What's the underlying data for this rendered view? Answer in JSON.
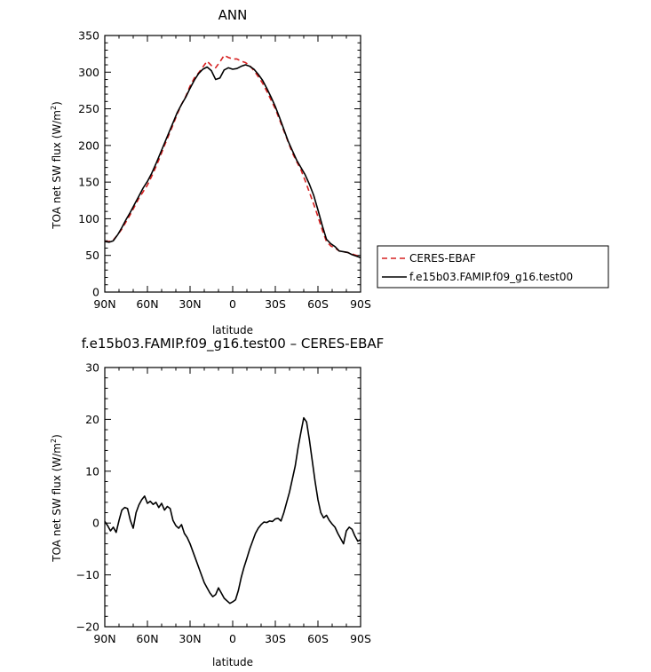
{
  "chart_data": [
    {
      "type": "line",
      "title": "ANN",
      "xlabel": "latitude",
      "ylabel": "TOA net SW flux (W/m²)",
      "ylabel_parts": {
        "text": "TOA net SW flux (W/m",
        "sup": "2",
        "close": ")"
      },
      "xlim": [
        90,
        -90
      ],
      "ylim": [
        0,
        350
      ],
      "x_ticks": [
        90,
        60,
        30,
        0,
        -30,
        -60,
        -90
      ],
      "x_tick_labels": [
        "90N",
        "60N",
        "30N",
        "0",
        "30S",
        "60S",
        "90S"
      ],
      "y_ticks": [
        0,
        50,
        100,
        150,
        200,
        250,
        300,
        350
      ],
      "y_tick_labels": [
        "0",
        "50",
        "100",
        "150",
        "200",
        "250",
        "300",
        "350"
      ],
      "grid": false,
      "legend_position": "right",
      "series": [
        {
          "name": "CERES-EBAF",
          "color": "#d62020",
          "style": "dashed",
          "x": [
            90,
            87,
            84,
            81,
            78,
            75,
            72,
            69,
            66,
            63,
            60,
            57,
            54,
            51,
            48,
            45,
            42,
            39,
            36,
            33,
            30,
            27,
            24,
            21,
            18,
            15,
            12,
            9,
            6,
            3,
            0,
            -3,
            -6,
            -9,
            -12,
            -15,
            -18,
            -21,
            -24,
            -27,
            -30,
            -33,
            -36,
            -39,
            -42,
            -45,
            -48,
            -51,
            -54,
            -57,
            -60,
            -63,
            -66,
            -69,
            -72,
            -75,
            -78,
            -81,
            -84,
            -87,
            -90
          ],
          "y": [
            69,
            69,
            71,
            78,
            86,
            96,
            106,
            117,
            128,
            137,
            146,
            158,
            171,
            185,
            200,
            214,
            228,
            243,
            256,
            267,
            281,
            292,
            299,
            307,
            315,
            309,
            306,
            314,
            323,
            320,
            318,
            318,
            315,
            313,
            309,
            302,
            294,
            285,
            274,
            262,
            250,
            235,
            220,
            205,
            190,
            178,
            167,
            152,
            136,
            120,
            103,
            85,
            69,
            63,
            60,
            56,
            55,
            54,
            52,
            50,
            49
          ]
        },
        {
          "name": "f.e15b03.FAMIP.f09_g16.test00",
          "color": "#000000",
          "style": "solid",
          "x": [
            90,
            87,
            84,
            81,
            78,
            75,
            72,
            69,
            66,
            63,
            60,
            57,
            54,
            51,
            48,
            45,
            42,
            39,
            36,
            33,
            30,
            27,
            24,
            21,
            18,
            15,
            12,
            9,
            6,
            3,
            0,
            -3,
            -6,
            -9,
            -12,
            -15,
            -18,
            -21,
            -24,
            -27,
            -30,
            -33,
            -36,
            -39,
            -42,
            -45,
            -48,
            -51,
            -54,
            -57,
            -60,
            -63,
            -66,
            -69,
            -72,
            -75,
            -78,
            -81,
            -84,
            -87,
            -90
          ],
          "y": [
            69,
            68,
            70,
            78,
            88,
            99,
            109,
            120,
            131,
            142,
            151,
            162,
            175,
            189,
            203,
            217,
            231,
            245,
            256,
            266,
            278,
            289,
            298,
            304,
            307,
            302,
            290,
            292,
            303,
            306,
            304,
            305,
            308,
            310,
            308,
            304,
            297,
            289,
            278,
            266,
            253,
            238,
            222,
            206,
            193,
            180,
            170,
            160,
            147,
            132,
            112,
            91,
            72,
            66,
            62,
            56,
            55,
            54,
            51,
            49,
            47
          ]
        }
      ]
    },
    {
      "type": "line",
      "title": "f.e15b03.FAMIP.f09_g16.test00 – CERES-EBAF",
      "xlabel": "latitude",
      "ylabel": "TOA net SW flux (W/m²)",
      "ylabel_parts": {
        "text": "TOA net SW flux (W/m",
        "sup": "2",
        "close": ")"
      },
      "xlim": [
        90,
        -90
      ],
      "ylim": [
        -20,
        30
      ],
      "x_ticks": [
        90,
        60,
        30,
        0,
        -30,
        -60,
        -90
      ],
      "x_tick_labels": [
        "90N",
        "60N",
        "30N",
        "0",
        "30S",
        "60S",
        "90S"
      ],
      "y_ticks": [
        -20,
        -10,
        0,
        10,
        20,
        30
      ],
      "y_tick_labels": [
        "−20",
        "−10",
        "0",
        "10",
        "20",
        "30"
      ],
      "grid": false,
      "series": [
        {
          "color": "#000000",
          "style": "solid",
          "x": [
            90,
            88,
            86,
            84,
            82,
            80,
            78,
            76,
            74,
            72,
            70,
            68,
            66,
            64,
            62,
            60,
            58,
            56,
            54,
            52,
            50,
            48,
            46,
            44,
            42,
            40,
            38,
            36,
            34,
            32,
            30,
            28,
            26,
            24,
            22,
            20,
            18,
            16,
            14,
            12,
            10,
            8,
            6,
            4,
            2,
            0,
            -2,
            -4,
            -6,
            -8,
            -10,
            -12,
            -14,
            -16,
            -18,
            -20,
            -22,
            -24,
            -26,
            -28,
            -30,
            -32,
            -34,
            -36,
            -38,
            -40,
            -42,
            -44,
            -46,
            -48,
            -50,
            -52,
            -54,
            -56,
            -58,
            -60,
            -62,
            -64,
            -66,
            -68,
            -70,
            -72,
            -74,
            -76,
            -78,
            -80,
            -82,
            -84,
            -86,
            -88,
            -90
          ],
          "y": [
            0.3,
            -0.5,
            -1.5,
            -0.8,
            -1.8,
            0.5,
            2.5,
            3.0,
            2.8,
            0.5,
            -1.0,
            2.0,
            3.5,
            4.5,
            5.2,
            3.8,
            4.2,
            3.6,
            4.0,
            3.0,
            3.8,
            2.5,
            3.2,
            2.8,
            0.5,
            -0.5,
            -1.0,
            -0.3,
            -2.0,
            -2.8,
            -4.0,
            -5.5,
            -7.0,
            -8.5,
            -10.0,
            -11.5,
            -12.5,
            -13.5,
            -14.2,
            -13.8,
            -12.5,
            -13.5,
            -14.5,
            -15.0,
            -15.5,
            -15.2,
            -14.8,
            -13.0,
            -10.5,
            -8.5,
            -6.8,
            -5.0,
            -3.5,
            -2.0,
            -1.0,
            -0.3,
            0.2,
            0.1,
            0.4,
            0.3,
            0.8,
            0.9,
            0.4,
            2.0,
            4.0,
            6.0,
            8.5,
            11.0,
            14.5,
            17.5,
            20.3,
            19.5,
            16.0,
            12.0,
            8.0,
            4.5,
            2.0,
            1.0,
            1.5,
            0.5,
            -0.2,
            -0.8,
            -2.0,
            -3.0,
            -4.0,
            -1.5,
            -0.8,
            -1.2,
            -2.5,
            -3.5,
            -3.2
          ]
        }
      ]
    }
  ],
  "colors": {
    "axis": "#000000",
    "ceres": "#d62020",
    "model": "#000000"
  }
}
